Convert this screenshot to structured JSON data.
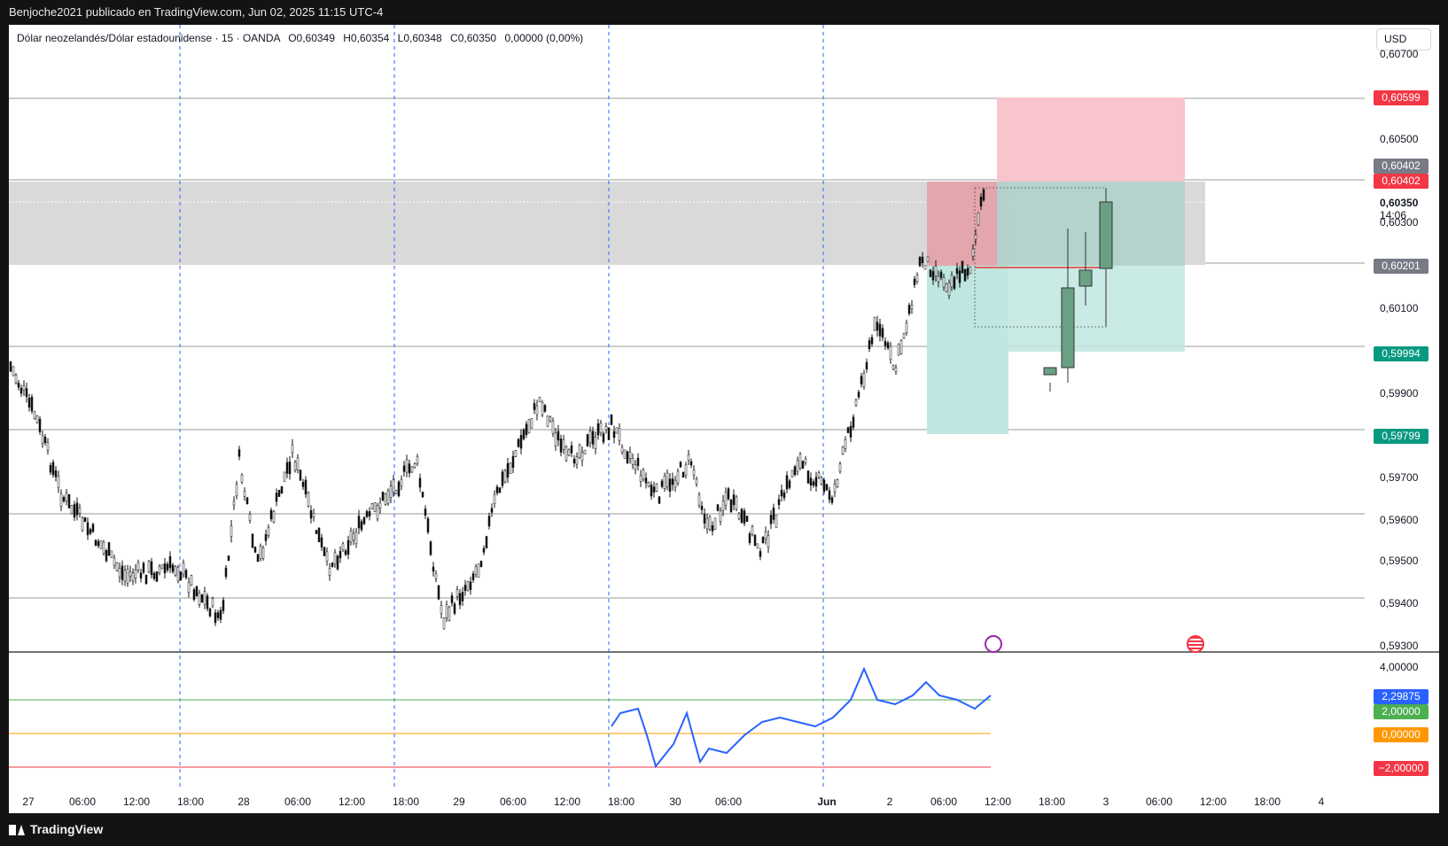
{
  "header": {
    "publisher": "Benjoche2021 publicado en TradingView.com, Jun 02, 2025 11:15 UTC-4"
  },
  "legend": {
    "symbol": "Dólar neozelandés/Dólar estadounidense · 15 · OANDA",
    "open": "O0,60349",
    "high": "H0,60354",
    "low": "L0,60348",
    "close": "C0,60350",
    "change": "0,00000 (0,00%)"
  },
  "currency_button": "USD",
  "price_axis": {
    "labels": [
      "0,60700",
      "0,60500",
      "0,60300",
      "0,60100",
      "0,59900",
      "0,59700",
      "0,59600",
      "0,59500",
      "0,59400",
      "0,59300"
    ],
    "countdown": "14:06",
    "current_price": "0,60350"
  },
  "price_tags": [
    {
      "label": "0,60599",
      "color": "#f23645"
    },
    {
      "label": "0,60402",
      "color": "#787b86"
    },
    {
      "label": "0,60402",
      "color": "#f23645"
    },
    {
      "label": "0,60201",
      "color": "#787b86"
    },
    {
      "label": "0,59994",
      "color": "#089981"
    },
    {
      "label": "0,59799",
      "color": "#089981"
    }
  ],
  "oscillator": {
    "axis_labels": [
      "4,00000"
    ],
    "tags": [
      {
        "label": "2,29875",
        "color": "#2962ff"
      },
      {
        "label": "2,00000",
        "color": "#4caf50"
      },
      {
        "label": "0,00000",
        "color": "#ff9800"
      },
      {
        "label": "−2,00000",
        "color": "#f23645"
      }
    ]
  },
  "time_axis": [
    "27",
    "06:00",
    "12:00",
    "18:00",
    "28",
    "06:00",
    "12:00",
    "18:00",
    "29",
    "06:00",
    "12:00",
    "18:00",
    "30",
    "06:00",
    "Jun",
    "2",
    "06:00",
    "12:00",
    "18:00",
    "3",
    "06:00",
    "12:00",
    "18:00",
    "4"
  ],
  "footer": {
    "brand": "TradingView"
  },
  "icons": [
    "lightning-event-icon",
    "us-flag-event-icon"
  ],
  "colors": {
    "bull": "#6aa083",
    "bear_zone": "#f7c5cb",
    "bull_zone": "#bfe6e0",
    "range": "#d9d9d9",
    "indicator": "#2962ff"
  }
}
